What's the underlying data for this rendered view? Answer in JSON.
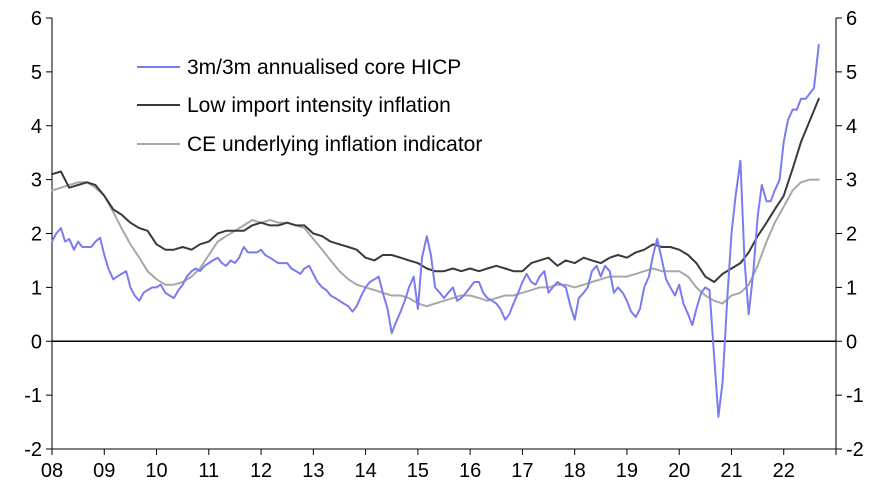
{
  "chart_data": {
    "type": "line",
    "title": "",
    "xlabel": "",
    "ylabel": "",
    "xlim": [
      2008,
      2023
    ],
    "ylim": [
      -2,
      6
    ],
    "y_ticks": [
      "-2",
      "-1",
      "0",
      "1",
      "2",
      "3",
      "4",
      "5",
      "6"
    ],
    "x_ticks": [
      "08",
      "09",
      "10",
      "11",
      "12",
      "13",
      "14",
      "15",
      "16",
      "17",
      "18",
      "19",
      "20",
      "21",
      "22"
    ],
    "secondary_y_axis": true,
    "grid": false,
    "zero_line": true,
    "legend_position": "top-left",
    "series": [
      {
        "name": "3m/3m annualised core HICP",
        "color": "#7b7bf0",
        "x": [
          2008.0,
          2008.08,
          2008.17,
          2008.25,
          2008.33,
          2008.42,
          2008.5,
          2008.58,
          2008.67,
          2008.75,
          2008.83,
          2008.92,
          2009.0,
          2009.08,
          2009.17,
          2009.25,
          2009.33,
          2009.42,
          2009.5,
          2009.58,
          2009.67,
          2009.75,
          2009.83,
          2009.92,
          2010.0,
          2010.08,
          2010.17,
          2010.25,
          2010.33,
          2010.42,
          2010.5,
          2010.58,
          2010.67,
          2010.75,
          2010.83,
          2010.92,
          2011.0,
          2011.08,
          2011.17,
          2011.25,
          2011.33,
          2011.42,
          2011.5,
          2011.58,
          2011.67,
          2011.75,
          2011.83,
          2011.92,
          2012.0,
          2012.08,
          2012.17,
          2012.25,
          2012.33,
          2012.42,
          2012.5,
          2012.58,
          2012.67,
          2012.75,
          2012.83,
          2012.92,
          2013.0,
          2013.08,
          2013.17,
          2013.25,
          2013.33,
          2013.42,
          2013.5,
          2013.58,
          2013.67,
          2013.75,
          2013.83,
          2013.92,
          2014.0,
          2014.08,
          2014.17,
          2014.25,
          2014.33,
          2014.42,
          2014.5,
          2014.58,
          2014.67,
          2014.75,
          2014.83,
          2014.92,
          2015.0,
          2015.08,
          2015.17,
          2015.25,
          2015.33,
          2015.42,
          2015.5,
          2015.58,
          2015.67,
          2015.75,
          2015.83,
          2015.92,
          2016.0,
          2016.08,
          2016.17,
          2016.25,
          2016.33,
          2016.42,
          2016.5,
          2016.58,
          2016.67,
          2016.75,
          2016.83,
          2016.92,
          2017.0,
          2017.08,
          2017.17,
          2017.25,
          2017.33,
          2017.42,
          2017.5,
          2017.58,
          2017.67,
          2017.75,
          2017.83,
          2017.92,
          2018.0,
          2018.08,
          2018.17,
          2018.25,
          2018.33,
          2018.42,
          2018.5,
          2018.58,
          2018.67,
          2018.75,
          2018.83,
          2018.92,
          2019.0,
          2019.08,
          2019.17,
          2019.25,
          2019.33,
          2019.42,
          2019.5,
          2019.58,
          2019.67,
          2019.75,
          2019.83,
          2019.92,
          2020.0,
          2020.08,
          2020.17,
          2020.25,
          2020.33,
          2020.42,
          2020.5,
          2020.58,
          2020.67,
          2020.75,
          2020.83,
          2020.92,
          2021.0,
          2021.08,
          2021.17,
          2021.25,
          2021.33,
          2021.42,
          2021.5,
          2021.58,
          2021.67,
          2021.75,
          2021.83,
          2021.92,
          2022.0,
          2022.08,
          2022.17,
          2022.25,
          2022.33,
          2022.42,
          2022.5,
          2022.58,
          2022.67
        ],
        "values": [
          1.85,
          2.0,
          2.1,
          1.85,
          1.9,
          1.7,
          1.85,
          1.75,
          1.75,
          1.75,
          1.85,
          1.92,
          1.6,
          1.35,
          1.15,
          1.2,
          1.25,
          1.3,
          1.0,
          0.85,
          0.75,
          0.9,
          0.95,
          1.0,
          1.0,
          1.05,
          0.9,
          0.85,
          0.8,
          0.95,
          1.05,
          1.2,
          1.3,
          1.35,
          1.3,
          1.4,
          1.45,
          1.5,
          1.55,
          1.45,
          1.4,
          1.5,
          1.45,
          1.55,
          1.75,
          1.65,
          1.65,
          1.65,
          1.7,
          1.6,
          1.55,
          1.5,
          1.45,
          1.45,
          1.45,
          1.35,
          1.3,
          1.25,
          1.35,
          1.4,
          1.25,
          1.1,
          1.0,
          0.95,
          0.85,
          0.8,
          0.75,
          0.7,
          0.65,
          0.55,
          0.65,
          0.85,
          1.0,
          1.1,
          1.15,
          1.2,
          0.9,
          0.6,
          0.15,
          0.35,
          0.55,
          0.75,
          1.0,
          1.2,
          0.6,
          1.55,
          1.95,
          1.6,
          1.0,
          0.9,
          0.8,
          0.9,
          1.0,
          0.75,
          0.8,
          0.9,
          1.0,
          1.1,
          1.1,
          0.9,
          0.8,
          0.75,
          0.7,
          0.6,
          0.4,
          0.5,
          0.7,
          0.9,
          1.1,
          1.25,
          1.1,
          1.05,
          1.2,
          1.3,
          0.9,
          1.0,
          1.1,
          1.05,
          1.0,
          0.65,
          0.4,
          0.8,
          0.9,
          1.0,
          1.3,
          1.4,
          1.2,
          1.4,
          1.3,
          0.9,
          1.0,
          0.9,
          0.75,
          0.55,
          0.45,
          0.6,
          1.0,
          1.2,
          1.6,
          1.9,
          1.5,
          1.15,
          1.0,
          0.85,
          1.05,
          0.7,
          0.5,
          0.3,
          0.6,
          0.9,
          1.0,
          0.95,
          -0.3,
          -1.4,
          -0.75,
          0.8,
          2.0,
          2.7,
          3.35,
          1.5,
          0.5,
          1.3,
          2.3,
          2.9,
          2.6,
          2.6,
          2.8,
          3.0,
          3.7,
          4.1,
          4.3,
          4.3,
          4.5,
          4.5,
          4.6,
          4.7,
          5.5
        ]
      },
      {
        "name": "Low import intensity inflation",
        "color": "#3a3a3a",
        "x": [
          2008.0,
          2008.17,
          2008.33,
          2008.5,
          2008.67,
          2008.83,
          2009.0,
          2009.17,
          2009.33,
          2009.5,
          2009.67,
          2009.83,
          2010.0,
          2010.17,
          2010.33,
          2010.5,
          2010.67,
          2010.83,
          2011.0,
          2011.17,
          2011.33,
          2011.5,
          2011.67,
          2011.83,
          2012.0,
          2012.17,
          2012.33,
          2012.5,
          2012.67,
          2012.83,
          2013.0,
          2013.17,
          2013.33,
          2013.5,
          2013.67,
          2013.83,
          2014.0,
          2014.17,
          2014.33,
          2014.5,
          2014.67,
          2014.83,
          2015.0,
          2015.17,
          2015.33,
          2015.5,
          2015.67,
          2015.83,
          2016.0,
          2016.17,
          2016.33,
          2016.5,
          2016.67,
          2016.83,
          2017.0,
          2017.17,
          2017.33,
          2017.5,
          2017.67,
          2017.83,
          2018.0,
          2018.17,
          2018.33,
          2018.5,
          2018.67,
          2018.83,
          2019.0,
          2019.17,
          2019.33,
          2019.5,
          2019.67,
          2019.83,
          2020.0,
          2020.17,
          2020.33,
          2020.5,
          2020.67,
          2020.83,
          2021.0,
          2021.17,
          2021.33,
          2021.5,
          2021.67,
          2021.83,
          2022.0,
          2022.17,
          2022.33,
          2022.5,
          2022.67
        ],
        "values": [
          3.1,
          3.15,
          2.85,
          2.9,
          2.95,
          2.9,
          2.7,
          2.45,
          2.35,
          2.2,
          2.1,
          2.05,
          1.8,
          1.7,
          1.7,
          1.75,
          1.7,
          1.8,
          1.85,
          2.0,
          2.05,
          2.05,
          2.05,
          2.15,
          2.2,
          2.15,
          2.15,
          2.2,
          2.15,
          2.15,
          2.0,
          1.95,
          1.85,
          1.8,
          1.75,
          1.7,
          1.55,
          1.5,
          1.6,
          1.6,
          1.55,
          1.5,
          1.45,
          1.35,
          1.3,
          1.3,
          1.35,
          1.3,
          1.35,
          1.3,
          1.35,
          1.4,
          1.35,
          1.3,
          1.3,
          1.45,
          1.5,
          1.55,
          1.4,
          1.5,
          1.45,
          1.55,
          1.5,
          1.45,
          1.55,
          1.6,
          1.55,
          1.65,
          1.7,
          1.8,
          1.75,
          1.75,
          1.7,
          1.6,
          1.45,
          1.2,
          1.1,
          1.25,
          1.35,
          1.45,
          1.65,
          1.95,
          2.2,
          2.45,
          2.7,
          3.2,
          3.7,
          4.1,
          4.5
        ]
      },
      {
        "name": "CE underlying inflation indicator",
        "color": "#a8a8a8",
        "x": [
          2008.0,
          2008.17,
          2008.33,
          2008.5,
          2008.67,
          2008.83,
          2009.0,
          2009.17,
          2009.33,
          2009.5,
          2009.67,
          2009.83,
          2010.0,
          2010.17,
          2010.33,
          2010.5,
          2010.67,
          2010.83,
          2011.0,
          2011.17,
          2011.33,
          2011.5,
          2011.67,
          2011.83,
          2012.0,
          2012.17,
          2012.33,
          2012.5,
          2012.67,
          2012.83,
          2013.0,
          2013.17,
          2013.33,
          2013.5,
          2013.67,
          2013.83,
          2014.0,
          2014.17,
          2014.33,
          2014.5,
          2014.67,
          2014.83,
          2015.0,
          2015.17,
          2015.33,
          2015.5,
          2015.67,
          2015.83,
          2016.0,
          2016.17,
          2016.33,
          2016.5,
          2016.67,
          2016.83,
          2017.0,
          2017.17,
          2017.33,
          2017.5,
          2017.67,
          2017.83,
          2018.0,
          2018.17,
          2018.33,
          2018.5,
          2018.67,
          2018.83,
          2019.0,
          2019.17,
          2019.33,
          2019.5,
          2019.67,
          2019.83,
          2020.0,
          2020.17,
          2020.33,
          2020.5,
          2020.67,
          2020.83,
          2021.0,
          2021.17,
          2021.33,
          2021.5,
          2021.67,
          2021.83,
          2022.0,
          2022.17,
          2022.33,
          2022.5,
          2022.67
        ],
        "values": [
          2.8,
          2.85,
          2.9,
          2.95,
          2.95,
          2.85,
          2.7,
          2.4,
          2.1,
          1.8,
          1.55,
          1.3,
          1.15,
          1.05,
          1.05,
          1.1,
          1.2,
          1.35,
          1.6,
          1.85,
          1.95,
          2.05,
          2.15,
          2.25,
          2.2,
          2.25,
          2.2,
          2.2,
          2.15,
          2.1,
          1.9,
          1.7,
          1.5,
          1.3,
          1.15,
          1.05,
          1.0,
          0.95,
          0.9,
          0.85,
          0.85,
          0.8,
          0.7,
          0.65,
          0.7,
          0.75,
          0.8,
          0.85,
          0.85,
          0.8,
          0.75,
          0.8,
          0.85,
          0.85,
          0.9,
          0.95,
          1.0,
          1.0,
          1.05,
          1.05,
          1.0,
          1.05,
          1.1,
          1.15,
          1.2,
          1.2,
          1.2,
          1.25,
          1.3,
          1.35,
          1.3,
          1.3,
          1.3,
          1.2,
          1.0,
          0.85,
          0.75,
          0.7,
          0.85,
          0.9,
          1.05,
          1.4,
          1.85,
          2.2,
          2.5,
          2.8,
          2.95,
          3.0,
          3.0
        ]
      }
    ]
  }
}
